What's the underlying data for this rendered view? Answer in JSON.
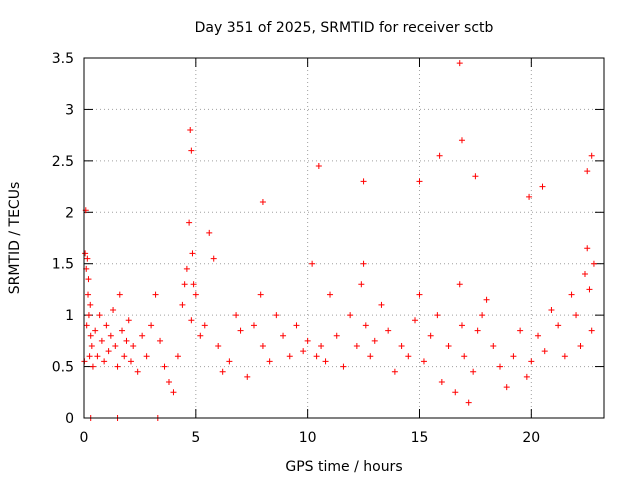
{
  "chart_data": {
    "type": "scatter",
    "title": "Day 351 of 2025, SRMTID for receiver sctb",
    "xlabel": "GPS time / hours",
    "ylabel": "SRMTID / TECUs",
    "xlim": [
      0,
      23.25
    ],
    "ylim": [
      0,
      3.5
    ],
    "xticks": [
      "0",
      "5",
      "10",
      "15",
      "20"
    ],
    "xtick_values": [
      0,
      5,
      10,
      15,
      20
    ],
    "yticks": [
      "0",
      "0.5",
      "1",
      "1.5",
      "2",
      "2.5",
      "3",
      "3.5"
    ],
    "ytick_values": [
      0,
      0.5,
      1,
      1.5,
      2,
      2.5,
      3,
      3.5
    ],
    "grid": true,
    "marker": "+",
    "series": [
      {
        "name": "SRMTID",
        "color": "#ff0000",
        "x": [
          0.02,
          0.05,
          0.08,
          0.1,
          0.12,
          0.15,
          0.18,
          0.2,
          0.22,
          0.25,
          0.28,
          0.3,
          0.35,
          0.4,
          0.5,
          0.6,
          0.7,
          0.8,
          0.9,
          1.0,
          1.1,
          1.2,
          1.3,
          1.4,
          1.5,
          1.6,
          1.7,
          1.8,
          1.9,
          2.0,
          2.1,
          2.2,
          2.4,
          2.6,
          2.8,
          3.0,
          3.2,
          3.4,
          3.6,
          3.8,
          4.0,
          4.2,
          4.4,
          4.5,
          4.6,
          4.7,
          4.8,
          4.85,
          4.9,
          5.0,
          5.2,
          5.4,
          5.6,
          5.8,
          6.0,
          6.2,
          6.5,
          6.8,
          7.0,
          7.3,
          7.6,
          7.9,
          8.0,
          8.3,
          8.6,
          8.9,
          9.2,
          9.5,
          9.8,
          10.0,
          10.2,
          10.4,
          10.6,
          10.8,
          11.0,
          11.3,
          11.6,
          11.9,
          12.2,
          12.4,
          12.5,
          12.6,
          12.8,
          13.0,
          13.3,
          13.6,
          13.9,
          14.2,
          14.5,
          14.8,
          15.0,
          15.2,
          15.5,
          15.8,
          16.0,
          16.3,
          16.6,
          16.8,
          16.9,
          17.0,
          17.2,
          17.4,
          17.6,
          17.8,
          18.0,
          18.3,
          18.6,
          18.9,
          19.2,
          19.5,
          19.8,
          20.0,
          20.3,
          20.6,
          20.9,
          21.2,
          21.5,
          21.8,
          22.0,
          22.2,
          22.4,
          22.5,
          22.6,
          22.7,
          22.8,
          0.3,
          1.5,
          3.3,
          4.75,
          4.8,
          8.0,
          10.5,
          12.5,
          15.0,
          15.9,
          16.8,
          16.9,
          17.5,
          19.9,
          20.5,
          22.5,
          22.7
        ],
        "y": [
          0.55,
          1.6,
          2.02,
          1.45,
          0.9,
          1.55,
          1.2,
          1.35,
          1.0,
          0.6,
          1.1,
          0.8,
          0.7,
          0.5,
          0.85,
          0.6,
          1.0,
          0.75,
          0.55,
          0.9,
          0.65,
          0.8,
          1.05,
          0.7,
          0.5,
          1.2,
          0.85,
          0.6,
          0.75,
          0.95,
          0.55,
          0.7,
          0.45,
          0.8,
          0.6,
          0.9,
          1.2,
          0.75,
          0.5,
          0.35,
          0.25,
          0.6,
          1.1,
          1.3,
          1.45,
          1.9,
          0.95,
          1.6,
          1.3,
          1.2,
          0.8,
          0.9,
          1.8,
          1.55,
          0.7,
          0.45,
          0.55,
          1.0,
          0.85,
          0.4,
          0.9,
          1.2,
          0.7,
          0.55,
          1.0,
          0.8,
          0.6,
          0.9,
          0.65,
          0.75,
          1.5,
          0.6,
          0.7,
          0.55,
          1.2,
          0.8,
          0.5,
          1.0,
          0.7,
          1.3,
          1.5,
          0.9,
          0.6,
          0.75,
          1.1,
          0.85,
          0.45,
          0.7,
          0.6,
          0.95,
          1.2,
          0.55,
          0.8,
          1.0,
          0.35,
          0.7,
          0.25,
          1.3,
          0.9,
          0.6,
          0.15,
          0.45,
          0.85,
          1.0,
          1.15,
          0.7,
          0.5,
          0.3,
          0.6,
          0.85,
          0.4,
          0.55,
          0.8,
          0.65,
          1.05,
          0.9,
          0.6,
          1.2,
          1.0,
          0.7,
          1.4,
          1.65,
          1.25,
          0.85,
          1.5,
          0.0,
          0.0,
          0.0,
          2.8,
          2.6,
          2.1,
          2.45,
          2.3,
          2.3,
          2.55,
          3.45,
          2.7,
          2.35,
          2.15,
          2.25,
          2.4,
          2.55
        ]
      }
    ]
  }
}
